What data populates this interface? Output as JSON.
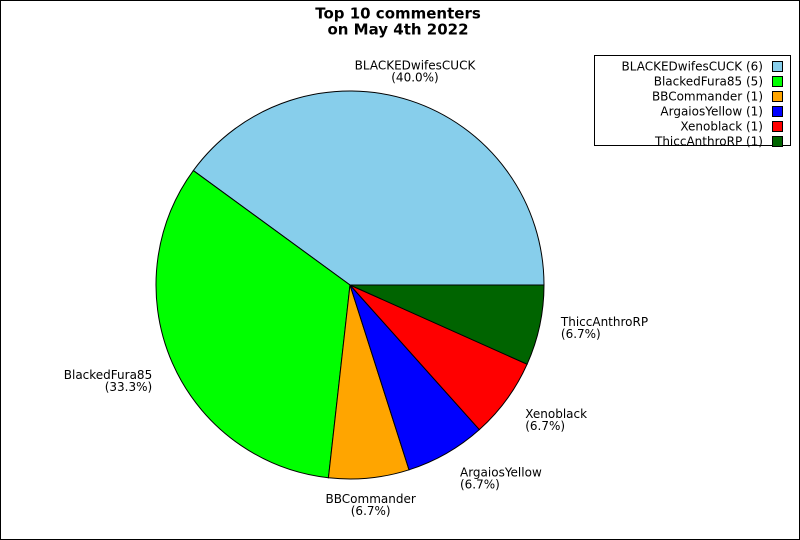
{
  "chart_data": {
    "type": "pie",
    "title": [
      "Top 10 commenters",
      "on May 4th 2022"
    ],
    "categories": [
      "BLACKEDwifesCUCK",
      "BlackedFura85",
      "BBCommander",
      "ArgaiosYellow",
      "Xenoblack",
      "ThiccAnthroRP"
    ],
    "values": [
      40.0,
      33.3,
      6.7,
      6.7,
      6.7,
      6.7
    ],
    "value_labels": [
      "(40.0%)",
      "(33.3%)",
      "(6.7%)",
      "(6.7%)",
      "(6.7%)",
      "(6.7%)"
    ],
    "legend_labels": [
      "BLACKEDwifesCUCK (6)",
      "BlackedFura85 (5)",
      "BBCommander (1)",
      "ArgaiosYellow (1)",
      "Xenoblack (1)",
      "ThiccAnthroRP (1)"
    ],
    "colors": [
      "#87ceeb",
      "#00ff00",
      "#ffa500",
      "#0000ff",
      "#ff0000",
      "#006400"
    ],
    "legend": "upper right"
  }
}
